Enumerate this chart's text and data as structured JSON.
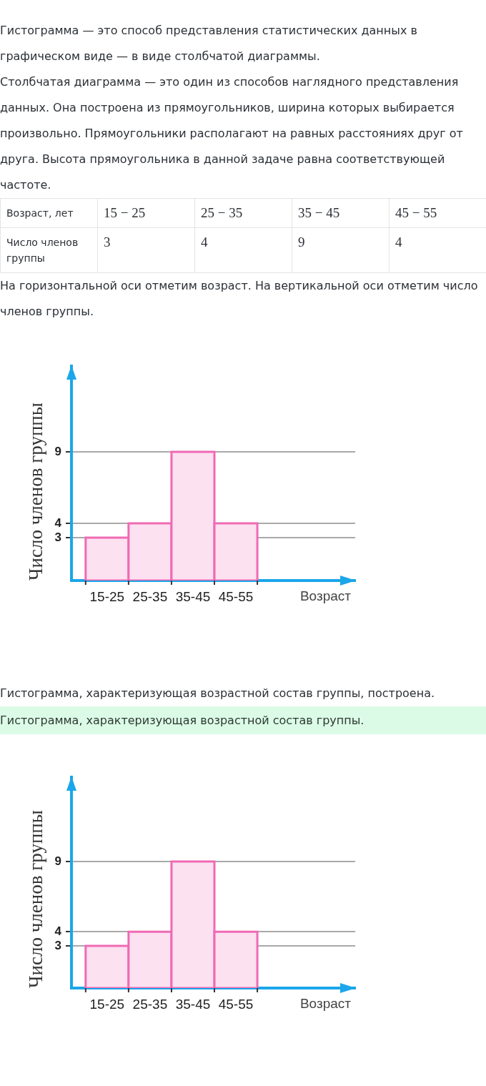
{
  "chart_data": [
    {
      "type": "other",
      "annotations": [
        "Гистограмма — это способ представления статистических данных в графическом виде — в виде столбчатой диаграммы.",
        "Столбчатая диаграмма — это один из способов наглядного представления данных. Она построена из прямоугольников, ширина которых выбирается произвольно. Прямоугольники располагают на равных расстояниях друг от друга. Высота прямоугольника в данной задаче равна соответствующей частоте."
      ],
      "xlabel": "Возраст, лет",
      "ylabel": "Число членов группы",
      "categories": [
        "15 − 25",
        "25 − 35",
        "35 − 45",
        "45 − 55"
      ],
      "values": [
        3,
        4,
        9,
        4
      ],
      "data_labels": true
    },
    {
      "type": "bar",
      "title": "На горизонтальной оси отметим возраст. На вертикальной оси отметим число членов группы.",
      "annotations": [
        "Гистограмма, характеризующая возрастной состав группы, построена."
      ],
      "categories": [
        "15-25",
        "25-35",
        "35-45",
        "45-55"
      ],
      "values": [
        3,
        4,
        9,
        4
      ],
      "color": "#f06ab4",
      "xlabel": "Возраст",
      "ylabel": "Число членов группы",
      "ylim": [
        0,
        15
      ],
      "yticks": [
        3,
        4,
        9
      ],
      "grid": "y"
    },
    {
      "type": "bar",
      "title": "Гистограмма, характеризующая возрастной состав группы.",
      "categories": [
        "15-25",
        "25-35",
        "35-45",
        "45-55"
      ],
      "values": [
        3,
        4,
        9,
        4
      ],
      "color": "#f06ab4",
      "xlabel": "Возраст",
      "ylabel": "Число членов группы",
      "ylim": [
        0,
        15
      ],
      "yticks": [
        3,
        4,
        9
      ],
      "grid": "y"
    }
  ]
}
